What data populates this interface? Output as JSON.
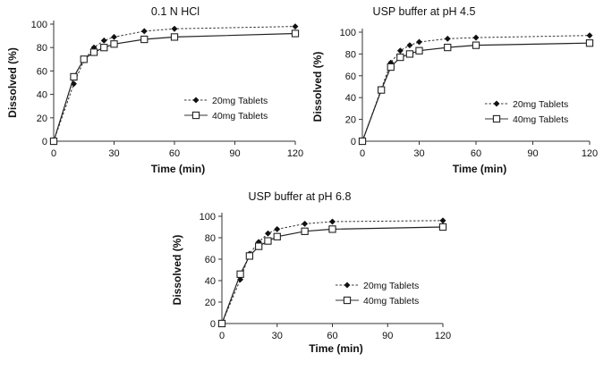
{
  "chart_data": [
    {
      "type": "line",
      "title": "0.1 N HCl",
      "xlabel": "Time  (min)",
      "ylabel": "Dissolved (%)",
      "xlim": [
        0,
        120
      ],
      "ylim": [
        0,
        100
      ],
      "xticks": [
        "0",
        "30",
        "60",
        "90",
        "120"
      ],
      "yticks": [
        "0",
        "20",
        "40",
        "60",
        "80",
        "100"
      ],
      "x": [
        0,
        10,
        15,
        20,
        25,
        30,
        45,
        60,
        120
      ],
      "legend": "right",
      "series": [
        {
          "name": "20mg Tablets",
          "style": "dashed",
          "marker": "diamond-filled",
          "values": [
            0,
            49,
            69,
            80,
            86,
            89,
            94,
            96,
            98
          ]
        },
        {
          "name": "40mg Tablets",
          "style": "solid",
          "marker": "square-open",
          "values": [
            0,
            55,
            70,
            76,
            80,
            83,
            87,
            89,
            92
          ]
        }
      ]
    },
    {
      "type": "line",
      "title": "USP buffer at pH 4.5",
      "xlabel": "Time  (min)",
      "ylabel": "Dissolved (%)",
      "xlim": [
        0,
        120
      ],
      "ylim": [
        0,
        100
      ],
      "xticks": [
        "0",
        "30",
        "60",
        "90",
        "120"
      ],
      "yticks": [
        "0",
        "20",
        "40",
        "60",
        "80",
        "100"
      ],
      "x": [
        0,
        10,
        15,
        20,
        25,
        30,
        45,
        60,
        120
      ],
      "legend": "right",
      "series": [
        {
          "name": "20mg Tablets",
          "style": "dashed",
          "marker": "diamond-filled",
          "values": [
            0,
            48,
            72,
            83,
            88,
            91,
            94,
            95,
            97
          ]
        },
        {
          "name": "40mg Tablets",
          "style": "solid",
          "marker": "square-open",
          "values": [
            0,
            47,
            68,
            77,
            80,
            83,
            86,
            88,
            90
          ]
        }
      ]
    },
    {
      "type": "line",
      "title": "USP buffer at pH 6.8",
      "xlabel": "Time  (min)",
      "ylabel": "Dissolved (%)",
      "xlim": [
        0,
        120
      ],
      "ylim": [
        0,
        100
      ],
      "xticks": [
        "0",
        "30",
        "60",
        "90",
        "120"
      ],
      "yticks": [
        "0",
        "20",
        "40",
        "60",
        "80",
        "100"
      ],
      "x": [
        0,
        10,
        15,
        20,
        25,
        30,
        45,
        60,
        120
      ],
      "legend": "right",
      "series": [
        {
          "name": "20mg Tablets",
          "style": "dashed",
          "marker": "diamond-filled",
          "values": [
            0,
            41,
            65,
            76,
            84,
            88,
            93,
            95,
            96
          ]
        },
        {
          "name": "40mg Tablets",
          "style": "solid",
          "marker": "square-open",
          "values": [
            0,
            46,
            63,
            72,
            77,
            81,
            86,
            88,
            90
          ]
        }
      ]
    }
  ]
}
